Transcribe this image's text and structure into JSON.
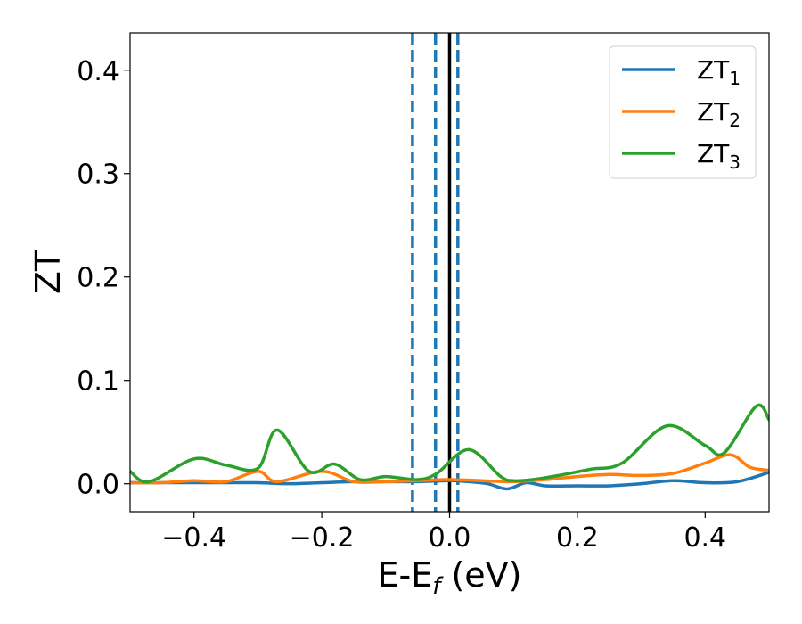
{
  "chart_data": {
    "type": "line",
    "xlabel": "E-E",
    "xlabel_sub": "f",
    "xlabel_unit": " (eV)",
    "ylabel": "ZT",
    "xlim": [
      -0.5,
      0.5
    ],
    "ylim": [
      -0.027,
      0.436
    ],
    "xticks": [
      -0.4,
      -0.2,
      0.0,
      0.2,
      0.4
    ],
    "xtick_labels": [
      "−0.4",
      "−0.2",
      "0.0",
      "0.2",
      "0.4"
    ],
    "yticks": [
      0.0,
      0.1,
      0.2,
      0.3,
      0.4
    ],
    "ytick_labels": [
      "0.0",
      "0.1",
      "0.2",
      "0.3",
      "0.4"
    ],
    "legend_position": "top-right",
    "vlines": [
      {
        "x": 0.0,
        "style": "solid",
        "color": "#000000"
      },
      {
        "x": -0.058,
        "style": "dashed",
        "color": "#1f77b4"
      },
      {
        "x": -0.022,
        "style": "dashed",
        "color": "#1f77b4"
      },
      {
        "x": 0.013,
        "style": "dashed",
        "color": "#1f77b4"
      }
    ],
    "series": [
      {
        "name": "ZT",
        "name_sub": "1",
        "color": "#1f77b4",
        "x": [
          -0.5,
          -0.45,
          -0.4,
          -0.35,
          -0.3,
          -0.25,
          -0.2,
          -0.15,
          -0.1,
          -0.05,
          0.0,
          0.03,
          0.06,
          0.09,
          0.12,
          0.15,
          0.2,
          0.25,
          0.3,
          0.35,
          0.4,
          0.45,
          0.5
        ],
        "y": [
          0.001,
          0.001,
          0.001,
          0.001,
          0.001,
          0.0,
          0.001,
          0.002,
          0.002,
          0.002,
          0.003,
          0.002,
          0.0,
          -0.005,
          0.001,
          -0.002,
          -0.002,
          -0.002,
          0.0,
          0.003,
          0.001,
          0.002,
          0.011
        ]
      },
      {
        "name": "ZT",
        "name_sub": "2",
        "color": "#ff7f0e",
        "x": [
          -0.5,
          -0.45,
          -0.4,
          -0.35,
          -0.3,
          -0.27,
          -0.2,
          -0.15,
          -0.1,
          -0.05,
          0.0,
          0.05,
          0.1,
          0.15,
          0.2,
          0.25,
          0.3,
          0.35,
          0.4,
          0.44,
          0.47,
          0.5
        ],
        "y": [
          0.001,
          0.001,
          0.003,
          0.002,
          0.012,
          0.002,
          0.012,
          0.002,
          0.002,
          0.003,
          0.004,
          0.003,
          0.002,
          0.004,
          0.007,
          0.009,
          0.008,
          0.01,
          0.02,
          0.028,
          0.016,
          0.013
        ]
      },
      {
        "name": "ZT",
        "name_sub": "3",
        "color": "#2ca02c",
        "x": [
          -0.5,
          -0.47,
          -0.4,
          -0.35,
          -0.3,
          -0.27,
          -0.22,
          -0.18,
          -0.14,
          -0.1,
          -0.05,
          -0.02,
          0.03,
          0.08,
          0.1,
          0.13,
          0.17,
          0.22,
          0.27,
          0.34,
          0.4,
          0.43,
          0.48,
          0.5
        ],
        "y": [
          0.012,
          0.002,
          0.024,
          0.018,
          0.015,
          0.052,
          0.012,
          0.019,
          0.004,
          0.007,
          0.004,
          0.01,
          0.033,
          0.007,
          0.003,
          0.004,
          0.008,
          0.014,
          0.02,
          0.056,
          0.037,
          0.03,
          0.075,
          0.062
        ]
      }
    ]
  }
}
